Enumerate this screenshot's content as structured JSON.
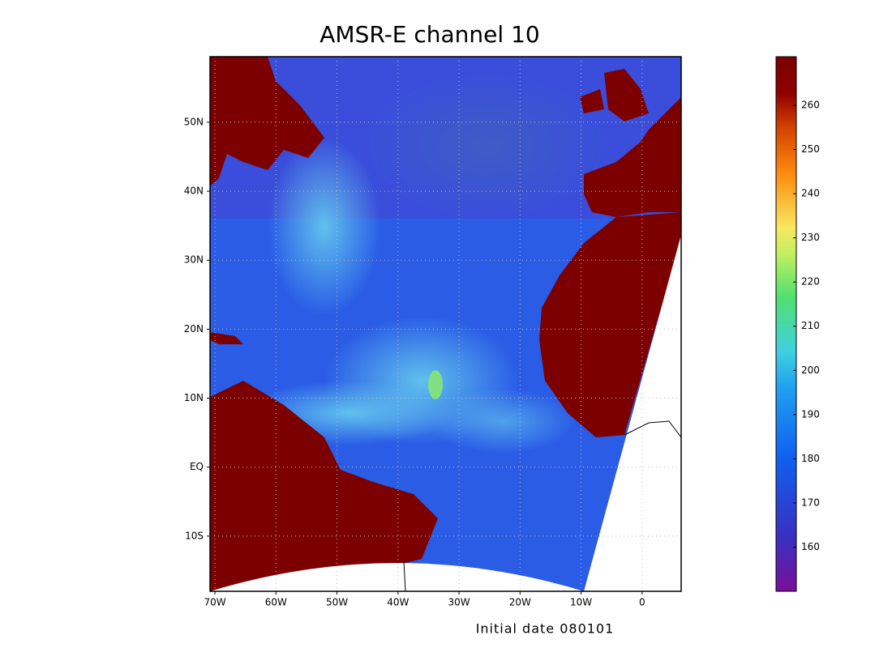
{
  "title": "AMSR-E channel 10",
  "footer": "Initial date 080101",
  "map": {
    "xlim": [
      -70.8,
      6.4
    ],
    "ylim": [
      -18.0,
      59.5
    ],
    "xticks": [
      {
        "value": -70,
        "label": "70W"
      },
      {
        "value": -60,
        "label": "60W"
      },
      {
        "value": -50,
        "label": "50W"
      },
      {
        "value": -40,
        "label": "40W"
      },
      {
        "value": -30,
        "label": "30W"
      },
      {
        "value": -20,
        "label": "20W"
      },
      {
        "value": -10,
        "label": "10W"
      },
      0
    ],
    "yticks": [
      {
        "value": 50,
        "label": "50N"
      },
      {
        "value": 40,
        "label": "40N"
      },
      {
        "value": 30,
        "label": "30N"
      },
      {
        "value": 20,
        "label": "20N"
      },
      {
        "value": 10,
        "label": "10N"
      },
      {
        "value": 0,
        "label": "EQ"
      },
      {
        "value": -10,
        "label": "10S"
      }
    ],
    "grid": true
  },
  "colorbar": {
    "lim": [
      150,
      271
    ],
    "ticks": [
      160,
      170,
      180,
      190,
      200,
      210,
      220,
      230,
      240,
      250,
      260
    ]
  }
}
